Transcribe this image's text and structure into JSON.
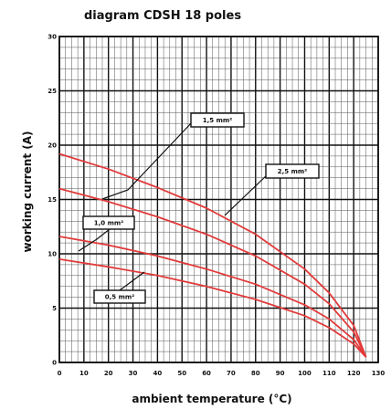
{
  "chart_data": {
    "type": "line",
    "title": "diagram CDSH 18 poles",
    "xlabel": "ambient temperature (°C)",
    "ylabel": "working current (A)",
    "xlim": [
      0,
      130
    ],
    "ylim": [
      0,
      30
    ],
    "xticks": [
      0,
      10,
      20,
      30,
      40,
      50,
      60,
      70,
      80,
      90,
      100,
      110,
      120,
      130
    ],
    "yticks": [
      0,
      5,
      10,
      15,
      20,
      25,
      30
    ],
    "grid": "on",
    "legend": "none",
    "colors": {
      "series": "#e23a3a",
      "grid_major": "#111111",
      "grid_minor": "#555555"
    },
    "series": [
      {
        "name": "2,5 mm²",
        "x": [
          0,
          20,
          40,
          60,
          80,
          100,
          110,
          120,
          125
        ],
        "y": [
          19.2,
          17.8,
          16.1,
          14.2,
          11.8,
          8.6,
          6.4,
          3.4,
          0.5
        ]
      },
      {
        "name": "1,5 mm²",
        "x": [
          0,
          20,
          40,
          60,
          80,
          100,
          110,
          120,
          125
        ],
        "y": [
          16.0,
          14.8,
          13.4,
          11.8,
          9.8,
          7.2,
          5.4,
          2.8,
          0.5
        ]
      },
      {
        "name": "1,0 mm²",
        "x": [
          0,
          20,
          40,
          60,
          80,
          100,
          110,
          120,
          125
        ],
        "y": [
          11.6,
          10.8,
          9.8,
          8.6,
          7.2,
          5.3,
          4.0,
          2.1,
          0.5
        ]
      },
      {
        "name": "0,5 mm²",
        "x": [
          0,
          20,
          40,
          60,
          80,
          100,
          110,
          120,
          125
        ],
        "y": [
          9.5,
          8.8,
          8.0,
          7.0,
          5.8,
          4.3,
          3.2,
          1.7,
          0.5
        ]
      }
    ]
  }
}
